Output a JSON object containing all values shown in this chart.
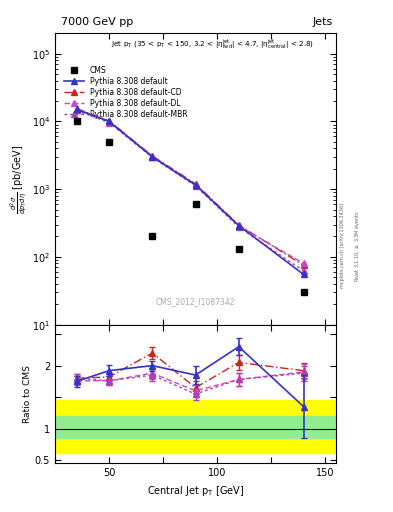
{
  "title_left": "7000 GeV pp",
  "title_right": "Jets",
  "watermark": "CMS_2012_I1087342",
  "xlabel": "Central Jet p_{T} [GeV]",
  "right_label": "Rivet 3.1.10, ≥ 3.3M events",
  "right_label2": "mcplots.cern.ch [arXiv:1306.3436]",
  "cms_pt": [
    35,
    50,
    70,
    90,
    110,
    140
  ],
  "cms_sigma": [
    10000,
    5000,
    200,
    600,
    130,
    30
  ],
  "pt": [
    35,
    50,
    70,
    90,
    110,
    140
  ],
  "pythia_default": [
    15000,
    10000,
    3000,
    1150,
    290,
    55
  ],
  "pythia_CD": [
    15500,
    10200,
    3100,
    1200,
    295,
    75
  ],
  "pythia_DL": [
    15200,
    10100,
    3050,
    1175,
    285,
    80
  ],
  "pythia_MBR": [
    14500,
    9600,
    2950,
    1120,
    275,
    62
  ],
  "ratio_pt_main": [
    35,
    50,
    70,
    90,
    110,
    140
  ],
  "ratio_default_main": [
    1.75,
    1.92,
    2.0,
    1.85,
    2.3,
    1.35
  ],
  "ratio_default_err": [
    0.09,
    0.09,
    0.08,
    0.14,
    0.13,
    0.5
  ],
  "ratio_CD_main": [
    1.8,
    1.82,
    2.2,
    1.65,
    2.05,
    1.92
  ],
  "ratio_CD_err": [
    0.07,
    0.07,
    0.09,
    0.1,
    0.12,
    0.12
  ],
  "ratio_DL_main": [
    1.76,
    1.76,
    1.88,
    1.6,
    1.78,
    1.9
  ],
  "ratio_DL_err": [
    0.07,
    0.07,
    0.09,
    0.1,
    0.11,
    0.12
  ],
  "ratio_MBR_main": [
    1.8,
    1.76,
    1.85,
    1.55,
    1.78,
    1.88
  ],
  "ratio_MBR_err": [
    0.07,
    0.07,
    0.09,
    0.1,
    0.11,
    0.12
  ],
  "green_band_lo": 0.85,
  "green_band_hi": 1.2,
  "yellow_band_lo": 0.62,
  "yellow_band_hi": 1.45,
  "color_default": "#3333cc",
  "color_CD": "#cc2222",
  "color_DL": "#cc44cc",
  "color_MBR": "#cc44cc",
  "xlim": [
    25,
    155
  ],
  "ylim_main": [
    10,
    200000
  ],
  "ylim_ratio": [
    0.45,
    2.65
  ]
}
